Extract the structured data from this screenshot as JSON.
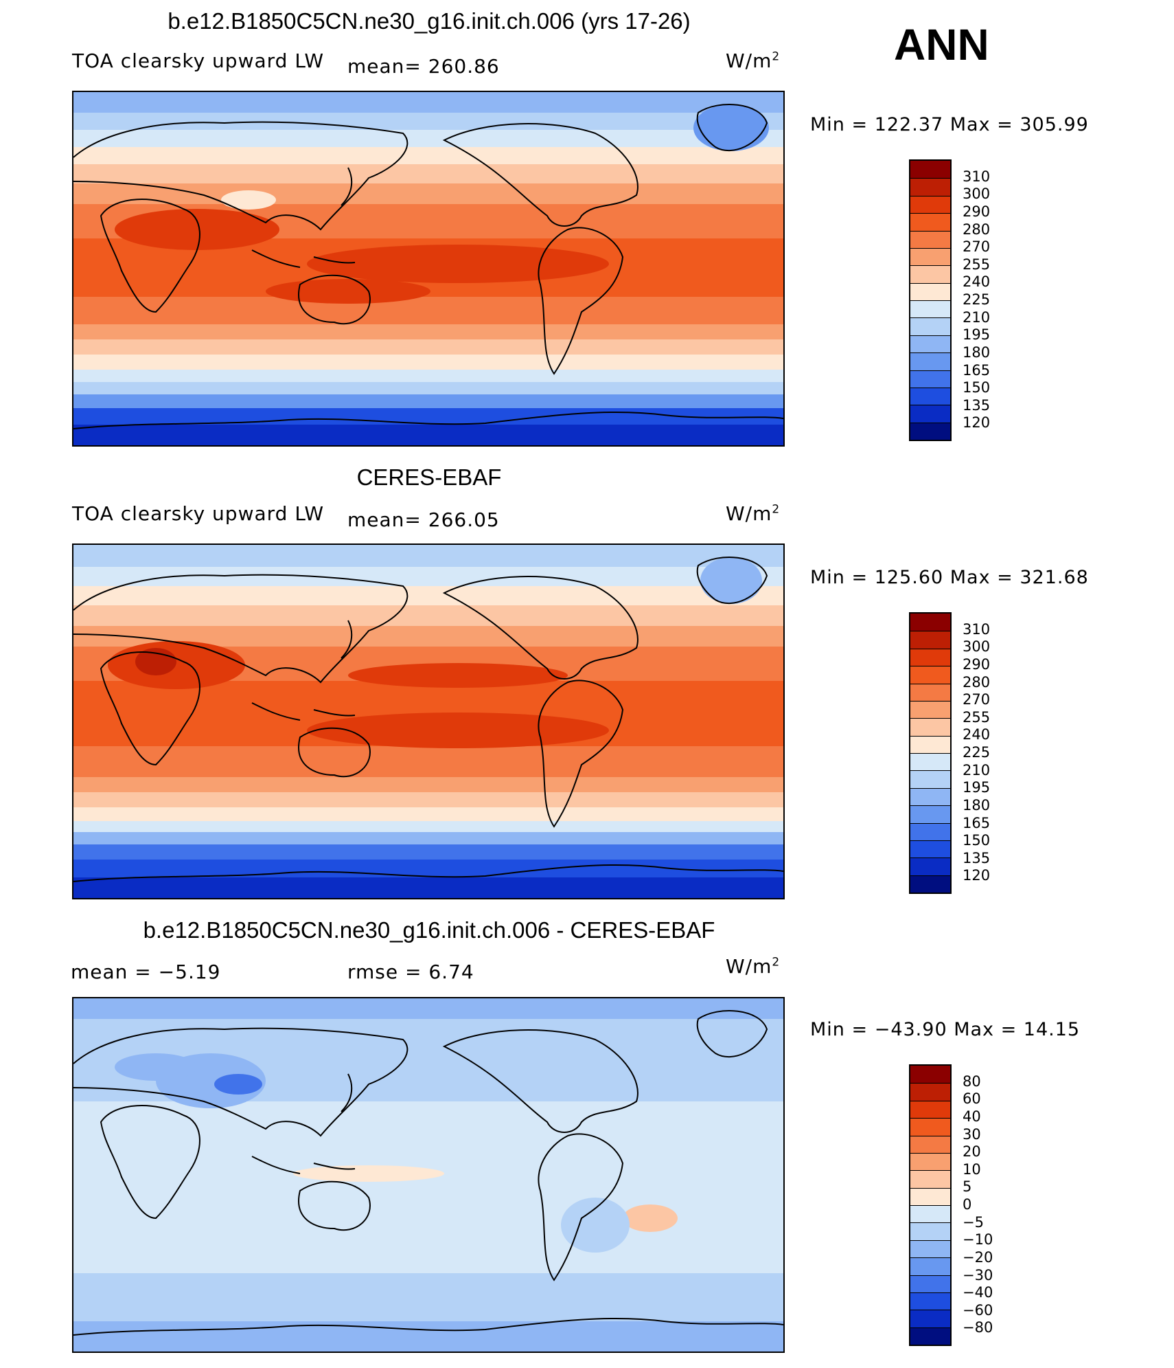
{
  "season": "ANN",
  "units_label": "W/m",
  "units_sup": "2",
  "panels": [
    {
      "title": "b.e12.B1850C5CN.ne30_g16.init.ch.006 (yrs 17-26)",
      "variable": "TOA clearsky upward LW",
      "stat1": "mean=  260.86",
      "stat2": "",
      "minmax": "Min  =  122.37  Max  =  305.99",
      "kind": "abs"
    },
    {
      "title": "CERES-EBAF",
      "variable": "TOA clearsky upward LW",
      "stat1": "mean=  266.05",
      "stat2": "",
      "minmax": "Min  =  125.60  Max  =  321.68",
      "kind": "abs"
    },
    {
      "title": "b.e12.B1850C5CN.ne30_g16.init.ch.006 - CERES-EBAF",
      "variable": "",
      "stat1": "mean  =    −5.19",
      "stat2": "rmse  =     6.74",
      "minmax": "Min  =  −43.90  Max  =    14.15",
      "kind": "diff"
    }
  ],
  "colorbars": {
    "abs": {
      "labels": [
        "310",
        "300",
        "290",
        "280",
        "270",
        "255",
        "240",
        "225",
        "210",
        "195",
        "180",
        "165",
        "150",
        "135",
        "120"
      ],
      "colors": [
        "#8b0000",
        "#bd1f04",
        "#e03a0a",
        "#f05a1e",
        "#f47a44",
        "#f8a070",
        "#fcc6a4",
        "#fee8d4",
        "#d6e8f8",
        "#b4d2f6",
        "#8fb6f4",
        "#6898f0",
        "#4173ea",
        "#1e4ee0",
        "#0a2cc4",
        "#000e80"
      ]
    },
    "diff": {
      "labels": [
        "80",
        "60",
        "40",
        "30",
        "20",
        "10",
        "5",
        "0",
        "−5",
        "−10",
        "−20",
        "−30",
        "−40",
        "−60",
        "−80"
      ],
      "colors": [
        "#8b0000",
        "#bd1f04",
        "#e03a0a",
        "#f05a1e",
        "#f47a44",
        "#f8a070",
        "#fcc6a4",
        "#fee8d4",
        "#d6e8f8",
        "#b4d2f6",
        "#8fb6f4",
        "#6898f0",
        "#4173ea",
        "#1e4ee0",
        "#0a2cc4",
        "#000e80"
      ]
    }
  }
}
